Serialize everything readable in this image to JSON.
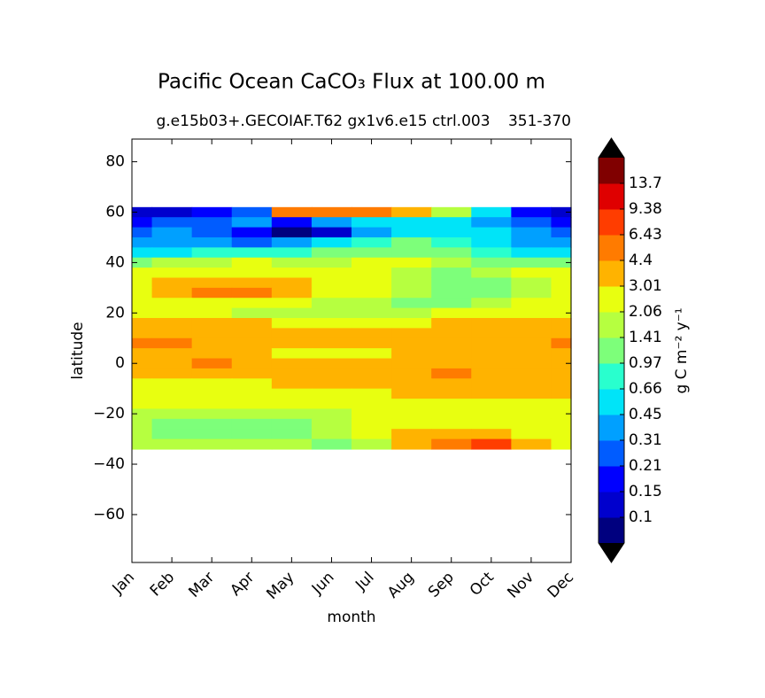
{
  "chart_data": {
    "type": "contourf",
    "title": "Pacific Ocean CaCO₃ Flux at 100.00 m",
    "subtitle": "g.e15b03+.GECOIAF.T62 gx1v6.e15 ctrl.003",
    "subtitle_right": "351-370",
    "xlabel": "month",
    "ylabel": "latitude",
    "categories": [
      "Jan",
      "Feb",
      "Mar",
      "Apr",
      "May",
      "Jun",
      "Jul",
      "Aug",
      "Sep",
      "Oct",
      "Nov",
      "Dec"
    ],
    "ylim": [
      -79,
      89
    ],
    "yticks": [
      {
        "value": -60,
        "label": "−60"
      },
      {
        "value": -40,
        "label": "−40"
      },
      {
        "value": -20,
        "label": "−20"
      },
      0,
      20,
      40,
      60,
      80
    ],
    "y": [
      60,
      56,
      52,
      48,
      44,
      40,
      36,
      32,
      28,
      24,
      20,
      16,
      12,
      8,
      4,
      0,
      -4,
      -8,
      -12,
      -16,
      -20,
      -24,
      -28,
      -32
    ],
    "z": [
      [
        0.12,
        0.12,
        0.18,
        0.25,
        5.2,
        5.2,
        5.2,
        3.6,
        1.7,
        0.55,
        0.18,
        0.12
      ],
      [
        0.18,
        0.25,
        0.25,
        0.38,
        0.18,
        0.38,
        0.55,
        0.55,
        0.55,
        0.38,
        0.25,
        0.18
      ],
      [
        0.25,
        0.38,
        0.25,
        0.18,
        0.07,
        0.12,
        0.38,
        0.55,
        0.55,
        0.55,
        0.38,
        0.25
      ],
      [
        0.38,
        0.38,
        0.38,
        0.25,
        0.38,
        0.55,
        0.8,
        1.2,
        0.8,
        0.55,
        0.38,
        0.38
      ],
      [
        0.55,
        0.55,
        0.8,
        0.8,
        0.8,
        1.2,
        1.2,
        1.2,
        1.2,
        0.8,
        0.55,
        0.55
      ],
      [
        1.2,
        1.7,
        1.7,
        2.5,
        1.7,
        1.7,
        2.5,
        2.5,
        1.7,
        1.2,
        1.2,
        1.2
      ],
      [
        2.5,
        2.5,
        2.5,
        2.5,
        2.5,
        2.5,
        2.5,
        1.7,
        1.2,
        1.7,
        2.5,
        2.5
      ],
      [
        2.5,
        3.6,
        3.6,
        3.6,
        3.6,
        2.5,
        2.5,
        1.7,
        1.2,
        1.2,
        1.7,
        2.5
      ],
      [
        2.5,
        3.6,
        5.2,
        5.2,
        3.6,
        2.5,
        2.5,
        1.7,
        1.2,
        1.2,
        1.7,
        2.5
      ],
      [
        2.5,
        2.5,
        2.5,
        2.5,
        2.5,
        1.7,
        1.7,
        1.2,
        1.2,
        1.7,
        2.5,
        2.5
      ],
      [
        2.5,
        2.5,
        2.5,
        1.7,
        1.7,
        1.7,
        1.7,
        1.7,
        2.5,
        2.5,
        2.5,
        2.5
      ],
      [
        3.6,
        3.6,
        3.6,
        3.6,
        2.5,
        2.5,
        2.5,
        2.5,
        3.6,
        3.6,
        3.6,
        3.6
      ],
      [
        3.6,
        3.6,
        3.6,
        3.6,
        3.6,
        3.6,
        3.6,
        3.6,
        3.6,
        3.6,
        3.6,
        3.6
      ],
      [
        5.2,
        5.2,
        3.6,
        3.6,
        3.6,
        3.6,
        3.6,
        3.6,
        3.6,
        3.6,
        3.6,
        5.2
      ],
      [
        3.6,
        3.6,
        3.6,
        3.6,
        2.5,
        2.5,
        2.5,
        3.6,
        3.6,
        3.6,
        3.6,
        3.6
      ],
      [
        3.6,
        3.6,
        5.2,
        3.6,
        3.6,
        3.6,
        3.6,
        3.6,
        3.6,
        3.6,
        3.6,
        3.6
      ],
      [
        3.6,
        3.6,
        3.6,
        3.6,
        3.6,
        3.6,
        3.6,
        3.6,
        5.2,
        3.6,
        3.6,
        3.6
      ],
      [
        2.5,
        2.5,
        2.5,
        2.5,
        3.6,
        3.6,
        3.6,
        3.6,
        3.6,
        3.6,
        3.6,
        3.6
      ],
      [
        2.5,
        2.5,
        2.5,
        2.5,
        2.5,
        2.5,
        2.5,
        3.6,
        3.6,
        3.6,
        3.6,
        3.6
      ],
      [
        2.5,
        2.5,
        2.5,
        2.5,
        2.5,
        2.5,
        2.5,
        2.5,
        2.5,
        2.5,
        2.5,
        2.5
      ],
      [
        1.7,
        1.7,
        1.7,
        1.7,
        1.7,
        1.7,
        2.5,
        2.5,
        2.5,
        2.5,
        2.5,
        2.5
      ],
      [
        1.7,
        1.2,
        1.2,
        1.2,
        1.2,
        1.7,
        2.5,
        2.5,
        2.5,
        2.5,
        2.5,
        2.5
      ],
      [
        1.7,
        1.2,
        1.2,
        1.2,
        1.2,
        1.7,
        2.5,
        3.6,
        3.6,
        3.6,
        2.5,
        2.5
      ],
      [
        1.7,
        1.7,
        1.7,
        1.7,
        1.7,
        1.2,
        1.7,
        3.6,
        5.2,
        7.8,
        3.6,
        2.5
      ]
    ],
    "levels": [
      0.1,
      0.15,
      0.21,
      0.31,
      0.45,
      0.66,
      0.97,
      1.41,
      2.06,
      3.01,
      4.4,
      6.43,
      9.38,
      13.7
    ],
    "colors": [
      "#00007f",
      "#0000cd",
      "#0000ff",
      "#005cff",
      "#00a0ff",
      "#00e4f8",
      "#29ffce",
      "#7dff7a",
      "#b6ff40",
      "#e8ff10",
      "#ffb300",
      "#ff7b00",
      "#ff3d00",
      "#df0000",
      "#800000"
    ],
    "under_color": "#000000",
    "over_color": "#000000",
    "colorbar_label": "g C m⁻² y⁻¹"
  }
}
